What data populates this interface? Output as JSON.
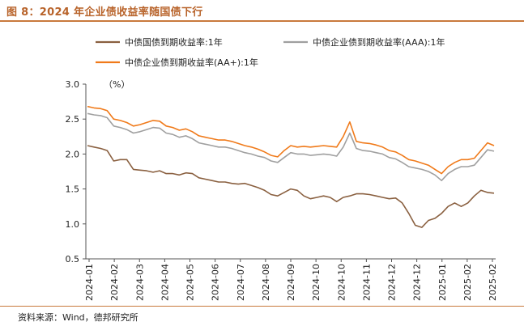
{
  "header": {
    "title": "图 8：2024 年企业债收益率随国债下行"
  },
  "footer": {
    "source": "资料来源：Wind，德邦研究所"
  },
  "colors": {
    "title": "#b8632a",
    "rule": "#c97a3d",
    "axis": "#555555"
  },
  "chart_data": {
    "type": "line",
    "title": "",
    "unit_label": "（%）",
    "xlabel": "",
    "ylabel": "",
    "ylim": [
      0.5,
      3.0
    ],
    "yticks": [
      "3.0",
      "2.5",
      "2.0",
      "1.5",
      "1.0",
      "0.5"
    ],
    "xticks": [
      "2024-01",
      "2024-02",
      "2024-03",
      "2024-04",
      "2024-05",
      "2024-06",
      "2024-07",
      "2024-08",
      "2024-09",
      "2024-10",
      "2024-10",
      "2024-11",
      "2024-12",
      "2024-12",
      "2025-01",
      "2025-02",
      "2025-02"
    ],
    "legend": "top",
    "series": [
      {
        "name": "中债国债到期收益率:1年",
        "color": "#8a6040",
        "values": [
          2.12,
          2.1,
          2.08,
          2.05,
          1.9,
          1.92,
          1.92,
          1.78,
          1.77,
          1.76,
          1.74,
          1.76,
          1.72,
          1.72,
          1.7,
          1.73,
          1.72,
          1.66,
          1.64,
          1.62,
          1.6,
          1.6,
          1.58,
          1.57,
          1.58,
          1.55,
          1.52,
          1.48,
          1.42,
          1.4,
          1.45,
          1.5,
          1.48,
          1.4,
          1.36,
          1.38,
          1.4,
          1.38,
          1.32,
          1.38,
          1.4,
          1.43,
          1.43,
          1.42,
          1.4,
          1.38,
          1.36,
          1.37,
          1.3,
          1.15,
          0.98,
          0.95,
          1.05,
          1.08,
          1.15,
          1.25,
          1.3,
          1.25,
          1.3,
          1.4,
          1.48,
          1.45,
          1.44
        ]
      },
      {
        "name": "中债企业债到期收益率(AAA):1年",
        "color": "#a0a0a0",
        "values": [
          2.58,
          2.56,
          2.55,
          2.52,
          2.4,
          2.38,
          2.35,
          2.3,
          2.32,
          2.35,
          2.38,
          2.37,
          2.3,
          2.28,
          2.24,
          2.26,
          2.22,
          2.16,
          2.14,
          2.12,
          2.1,
          2.1,
          2.08,
          2.05,
          2.02,
          2.0,
          1.97,
          1.95,
          1.9,
          1.88,
          1.95,
          2.02,
          2.0,
          2.0,
          1.98,
          1.99,
          2.0,
          1.99,
          1.97,
          2.1,
          2.3,
          2.08,
          2.05,
          2.04,
          2.02,
          2.0,
          1.95,
          1.93,
          1.88,
          1.82,
          1.8,
          1.78,
          1.75,
          1.7,
          1.62,
          1.72,
          1.78,
          1.82,
          1.82,
          1.84,
          1.95,
          2.06,
          2.04
        ]
      },
      {
        "name": "中债企业债到期收益率(AA+):1年",
        "color": "#f07a1a",
        "values": [
          2.68,
          2.66,
          2.65,
          2.62,
          2.5,
          2.48,
          2.45,
          2.4,
          2.42,
          2.45,
          2.48,
          2.47,
          2.4,
          2.38,
          2.34,
          2.36,
          2.32,
          2.26,
          2.24,
          2.22,
          2.2,
          2.2,
          2.18,
          2.15,
          2.12,
          2.1,
          2.07,
          2.03,
          1.98,
          1.96,
          2.05,
          2.12,
          2.1,
          2.11,
          2.1,
          2.11,
          2.12,
          2.11,
          2.1,
          2.25,
          2.46,
          2.18,
          2.16,
          2.15,
          2.13,
          2.1,
          2.05,
          2.03,
          1.98,
          1.92,
          1.9,
          1.87,
          1.84,
          1.78,
          1.72,
          1.82,
          1.88,
          1.92,
          1.92,
          1.94,
          2.05,
          2.16,
          2.12
        ]
      }
    ]
  }
}
